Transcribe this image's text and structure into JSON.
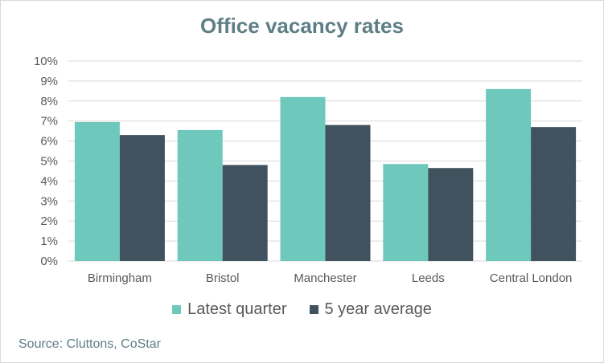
{
  "chart_data": {
    "type": "bar",
    "title": "Office vacancy rates",
    "categories": [
      "Birmingham",
      "Bristol",
      "Manchester",
      "Leeds",
      "Central London"
    ],
    "series": [
      {
        "name": "Latest quarter",
        "color": "#6fc8bc",
        "values": [
          6.95,
          6.55,
          8.2,
          4.85,
          8.6
        ]
      },
      {
        "name": "5 year average",
        "color": "#3f525d",
        "values": [
          6.3,
          4.8,
          6.8,
          4.65,
          6.7
        ]
      }
    ],
    "ylim": [
      0,
      10
    ],
    "yticks": [
      "0%",
      "1%",
      "2%",
      "3%",
      "4%",
      "5%",
      "6%",
      "7%",
      "8%",
      "9%",
      "10%"
    ],
    "grid": true,
    "legend_position": "bottom",
    "xlabel": "",
    "ylabel": ""
  },
  "source": "Source: Cluttons, CoStar"
}
